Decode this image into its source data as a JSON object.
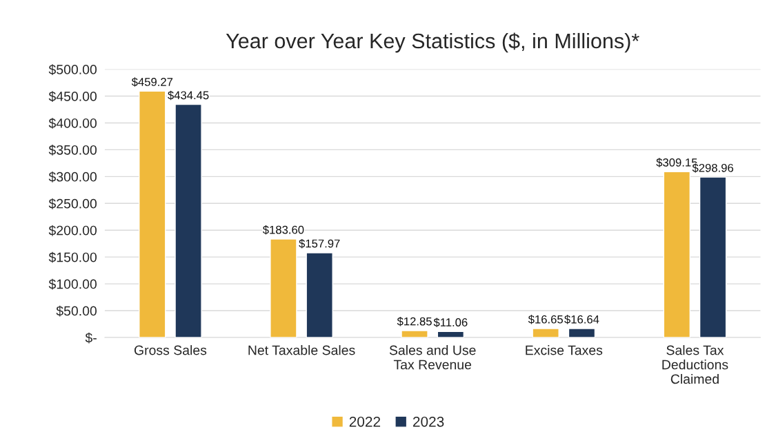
{
  "chart_data": {
    "type": "bar",
    "title": "Year over Year Key Statistics ($, in Millions)*",
    "categories": [
      "Gross Sales",
      "Net Taxable Sales",
      "Sales and Use\nTax Revenue",
      "Excise Taxes",
      "Sales Tax\nDeductions\nClaimed"
    ],
    "series": [
      {
        "name": "2022",
        "color": "#f0b93b",
        "values": [
          459.27,
          183.6,
          12.85,
          16.65,
          309.15
        ],
        "value_labels": [
          "$459.27",
          "$183.60",
          "$12.85",
          "$16.65",
          "$309.15"
        ]
      },
      {
        "name": "2023",
        "color": "#1f3759",
        "values": [
          434.45,
          157.97,
          11.06,
          16.64,
          298.96
        ],
        "value_labels": [
          "$434.45",
          "$157.97",
          "$11.06",
          "$16.64",
          "$298.96"
        ]
      }
    ],
    "ylim": [
      0,
      500
    ],
    "yticks": [
      {
        "value": 0,
        "label": "$-"
      },
      {
        "value": 50,
        "label": "$50.00"
      },
      {
        "value": 100,
        "label": "$100.00"
      },
      {
        "value": 150,
        "label": "$150.00"
      },
      {
        "value": 200,
        "label": "$200.00"
      },
      {
        "value": 250,
        "label": "$250.00"
      },
      {
        "value": 300,
        "label": "$300.00"
      },
      {
        "value": 350,
        "label": "$350.00"
      },
      {
        "value": 400,
        "label": "$400.00"
      },
      {
        "value": 450,
        "label": "$450.00"
      },
      {
        "value": 500,
        "label": "$500.00"
      }
    ],
    "grid": "y",
    "legend": "bottom"
  }
}
